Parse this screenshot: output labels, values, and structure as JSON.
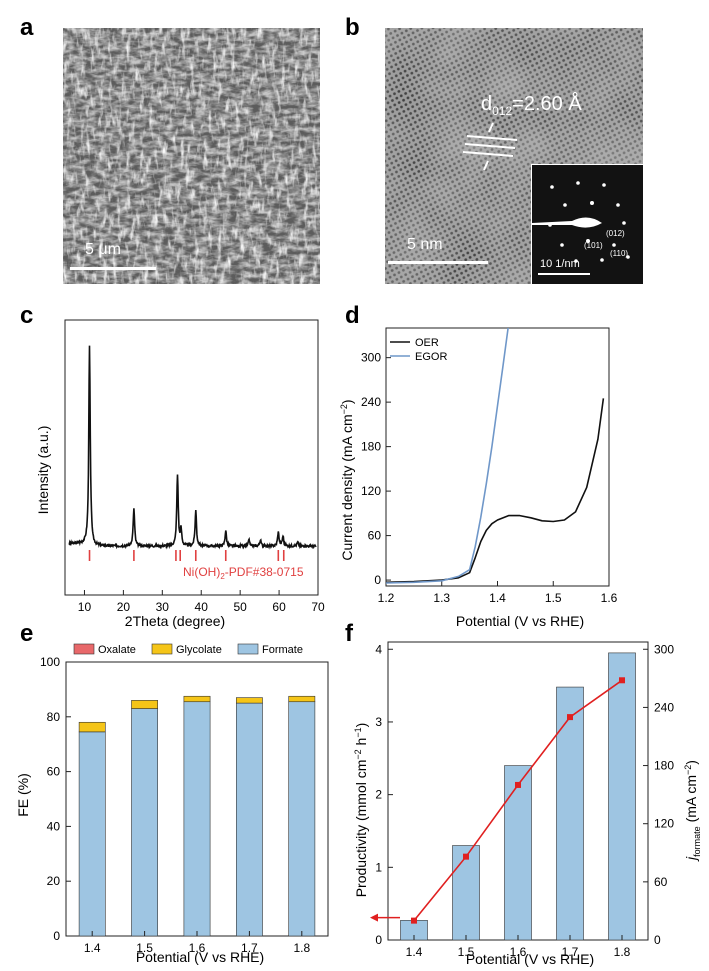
{
  "panels": {
    "a": {
      "letter": "a",
      "scale_label": "5 μm"
    },
    "b": {
      "letter": "b",
      "scale_label": "5 nm",
      "d_spacing": "d",
      "d_sub": "012",
      "d_value": "=2.60 Å",
      "inset_scale_label": "10 1/nm",
      "inset_labels": [
        "(012)",
        "(101)",
        "(110)"
      ]
    },
    "c": {
      "letter": "c"
    },
    "d": {
      "letter": "d"
    },
    "e": {
      "letter": "e"
    },
    "f": {
      "letter": "f"
    }
  },
  "colors": {
    "oer": "#111111",
    "egor": "#6f97c9",
    "xrd": "#111111",
    "ref": "#e04040",
    "oxalate": "#e8686a",
    "glycolate": "#f5c518",
    "formate": "#9ec5e2",
    "bar_edge": "#333333",
    "line": "#e02020"
  },
  "chart_data": [
    {
      "panel": "c",
      "type": "line",
      "xlabel": "2Theta (degree)",
      "ylabel": "Intensity (a.u.)",
      "xlim": [
        5,
        70
      ],
      "xticks": [
        10,
        20,
        30,
        40,
        50,
        60,
        70
      ],
      "peaks": [
        {
          "x": 11.3,
          "y": 100
        },
        {
          "x": 22.7,
          "y": 19
        },
        {
          "x": 33.9,
          "y": 36
        },
        {
          "x": 34.8,
          "y": 8
        },
        {
          "x": 38.6,
          "y": 18
        },
        {
          "x": 46.3,
          "y": 8
        },
        {
          "x": 52.3,
          "y": 3
        },
        {
          "x": 55.2,
          "y": 3
        },
        {
          "x": 59.8,
          "y": 7
        },
        {
          "x": 61.0,
          "y": 5
        },
        {
          "x": 64.8,
          "y": 2
        }
      ],
      "reference": {
        "name": "Ni(OH)",
        "sub": "2",
        "suffix": "-PDF#38-0715",
        "lines": [
          11.3,
          22.7,
          33.5,
          34.6,
          38.6,
          46.3,
          59.8,
          61.2
        ]
      }
    },
    {
      "panel": "d",
      "type": "line",
      "xlabel": "Potential (V vs RHE)",
      "ylabel": "Current density (mA cm",
      "ylabel_sup": "−2",
      "ylabel_end": ")",
      "xlim": [
        1.2,
        1.6
      ],
      "ylim": [
        -8,
        340
      ],
      "xticks": [
        1.2,
        1.3,
        1.4,
        1.5,
        1.6
      ],
      "yticks": [
        0,
        60,
        120,
        180,
        240,
        300
      ],
      "series": [
        {
          "name": "OER",
          "x": [
            1.2,
            1.25,
            1.3,
            1.33,
            1.35,
            1.36,
            1.37,
            1.38,
            1.39,
            1.4,
            1.42,
            1.44,
            1.46,
            1.48,
            1.5,
            1.52,
            1.54,
            1.56,
            1.58,
            1.59
          ],
          "y": [
            -3,
            -2,
            0,
            3,
            10,
            30,
            52,
            67,
            76,
            81,
            87,
            87,
            84,
            80,
            79,
            81,
            92,
            125,
            190,
            245
          ]
        },
        {
          "name": "EGOR",
          "x": [
            1.2,
            1.25,
            1.3,
            1.33,
            1.35,
            1.36,
            1.37,
            1.38,
            1.39,
            1.4,
            1.41,
            1.42
          ],
          "y": [
            -4,
            -3,
            -1,
            5,
            14,
            45,
            85,
            130,
            180,
            235,
            290,
            345
          ]
        }
      ]
    },
    {
      "panel": "e",
      "type": "bar",
      "xlabel": "Potential (V vs RHE)",
      "ylabel": "FE (%)",
      "categories": [
        "1.4",
        "1.5",
        "1.6",
        "1.7",
        "1.8"
      ],
      "ylim": [
        0,
        100
      ],
      "yticks": [
        0,
        20,
        40,
        60,
        80,
        100
      ],
      "series": [
        {
          "name": "Formate",
          "values": [
            74.5,
            83,
            85.5,
            85,
            85.5
          ]
        },
        {
          "name": "Glycolate",
          "values": [
            3.5,
            3,
            2,
            2,
            2
          ]
        },
        {
          "name": "Oxalate",
          "values": [
            0,
            0,
            0,
            0,
            0
          ]
        }
      ]
    },
    {
      "panel": "f",
      "type": "bar",
      "xlabel": "Potential (V vs RHE)",
      "ylabel": "Productivity (mmol cm",
      "ylabel_sup1": "−2",
      "ylabel_mid": " h",
      "ylabel_sup2": "−1",
      "ylabel_end": ")",
      "y2label": "j",
      "y2label_sub": "formate",
      "y2label_end": " (mA cm",
      "y2label_sup": "−2",
      "y2label_close": ")",
      "categories": [
        "1.4",
        "1.5",
        "1.6",
        "1.7",
        "1.8"
      ],
      "ylim": [
        0,
        4.1
      ],
      "yticks": [
        0,
        1,
        2,
        3,
        4
      ],
      "y2lim": [
        0,
        307.5
      ],
      "y2ticks": [
        0,
        60,
        120,
        180,
        240,
        300
      ],
      "series": [
        {
          "name": "Productivity",
          "values": [
            0.27,
            1.3,
            2.4,
            3.48,
            3.95
          ]
        },
        {
          "name": "j formate",
          "values": [
            20,
            86,
            160,
            230,
            268
          ]
        }
      ]
    }
  ]
}
